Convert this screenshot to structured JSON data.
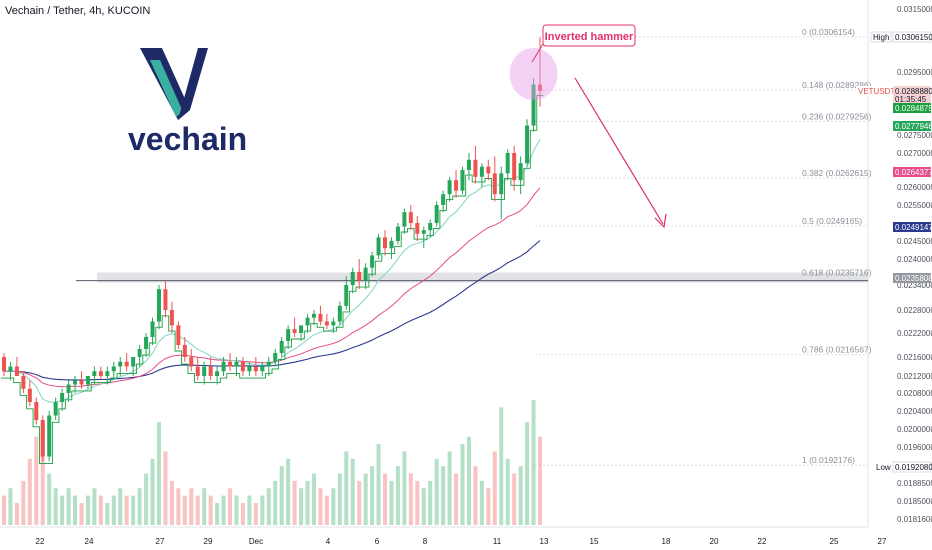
{
  "header": {
    "title": "Vechain / Tether, 4h, KUCOIN"
  },
  "logo": {
    "word": "vechain"
  },
  "annotation": {
    "label": "Inverted hammer"
  },
  "colors": {
    "bull": "#26a65b",
    "bear": "#ef5350",
    "ema_fast": "#7fd6c3",
    "ema_mid": "#e64d8a",
    "ema_slow": "#2b3a8f",
    "step_line": "#1b9e3e",
    "annotation": "#e0306b",
    "highlight_circle": "#e79bea",
    "logo_v_dark": "#1d2a66",
    "logo_v_light": "#3cb0a0"
  },
  "chart_data": {
    "type": "candlestick",
    "symbol": "VETUSDT",
    "exchange": "KUCOIN",
    "timeframe": "4h",
    "y_ticks": [
      "0.0315000",
      "0.0295000",
      "0.0275000",
      "0.0270000",
      "0.0260000",
      "0.0255000",
      "0.0245000",
      "0.0240000",
      "0.0234000",
      "0.0228000",
      "0.0222000",
      "0.0216000",
      "0.0212000",
      "0.0208000",
      "0.0204000",
      "0.0200000",
      "0.0196000",
      "0.0192080",
      "0.0188500",
      "0.0185000",
      "0.0181600"
    ],
    "x_ticks": [
      "22",
      "24",
      "27",
      "29",
      "Dec",
      "4",
      "6",
      "8",
      "11",
      "13",
      "15",
      "18",
      "20",
      "22",
      "25",
      "27"
    ],
    "fib_levels": [
      {
        "label": "0 (0.0306154)"
      },
      {
        "label": "0.148 (0.0289286)"
      },
      {
        "label": "0.236 (0.0279256)"
      },
      {
        "label": "0.382 (0.0262615)"
      },
      {
        "label": "0.5 (0.0249165)"
      },
      {
        "label": "0.618 (0.0235716)"
      },
      {
        "label": "0.786 (0.0216567)"
      },
      {
        "label": "1 (0.0192176)"
      }
    ],
    "price_badges": [
      {
        "text": "High"
      },
      {
        "text": "0.0306150"
      },
      {
        "text": "VETUSDT"
      },
      {
        "text": "0.0288880"
      },
      {
        "text": "01:35:45"
      },
      {
        "text": "0.0284875"
      },
      {
        "text": "0.0277946"
      },
      {
        "text": "0.0264377"
      },
      {
        "text": "0.0249147"
      },
      {
        "text": "0.0235808"
      },
      {
        "text": "Low"
      },
      {
        "text": "0.0192080"
      }
    ],
    "ohlc": [
      [
        0.0216,
        0.0217,
        0.0212,
        0.0213
      ],
      [
        0.0213,
        0.0215,
        0.0211,
        0.0214
      ],
      [
        0.0214,
        0.0216,
        0.0212,
        0.0212
      ],
      [
        0.0212,
        0.0213,
        0.0208,
        0.0209
      ],
      [
        0.0209,
        0.0211,
        0.0205,
        0.0206
      ],
      [
        0.0206,
        0.0207,
        0.0201,
        0.0202
      ],
      [
        0.0202,
        0.0203,
        0.0193,
        0.0194
      ],
      [
        0.0194,
        0.0204,
        0.0193,
        0.0203
      ],
      [
        0.0203,
        0.0207,
        0.0202,
        0.0206
      ],
      [
        0.0206,
        0.0209,
        0.0204,
        0.0208
      ],
      [
        0.0208,
        0.0211,
        0.0206,
        0.021
      ],
      [
        0.021,
        0.0212,
        0.0208,
        0.0211
      ],
      [
        0.0211,
        0.0213,
        0.0209,
        0.021
      ],
      [
        0.021,
        0.0212,
        0.0209,
        0.0212
      ],
      [
        0.0212,
        0.0214,
        0.021,
        0.0213
      ],
      [
        0.0213,
        0.0214,
        0.0211,
        0.0212
      ],
      [
        0.0212,
        0.0214,
        0.021,
        0.0213
      ],
      [
        0.0213,
        0.0215,
        0.0211,
        0.0214
      ],
      [
        0.0214,
        0.0216,
        0.0212,
        0.0215
      ],
      [
        0.0215,
        0.0217,
        0.0213,
        0.0214
      ],
      [
        0.0214,
        0.0216,
        0.0212,
        0.0216
      ],
      [
        0.0216,
        0.0219,
        0.0214,
        0.0218
      ],
      [
        0.0218,
        0.0222,
        0.0216,
        0.0221
      ],
      [
        0.0221,
        0.0226,
        0.0219,
        0.0225
      ],
      [
        0.0225,
        0.0234,
        0.0223,
        0.0233
      ],
      [
        0.0233,
        0.0235,
        0.0226,
        0.0228
      ],
      [
        0.0228,
        0.023,
        0.0222,
        0.0224
      ],
      [
        0.0224,
        0.0225,
        0.0218,
        0.0219
      ],
      [
        0.0219,
        0.0221,
        0.0215,
        0.0216
      ],
      [
        0.0216,
        0.0218,
        0.0213,
        0.0214
      ],
      [
        0.0214,
        0.0216,
        0.0211,
        0.0212
      ],
      [
        0.0212,
        0.0215,
        0.021,
        0.0214
      ],
      [
        0.0214,
        0.0216,
        0.0211,
        0.0212
      ],
      [
        0.0212,
        0.0214,
        0.021,
        0.0213
      ],
      [
        0.0213,
        0.0216,
        0.0212,
        0.0215
      ],
      [
        0.0215,
        0.0217,
        0.0213,
        0.0214
      ],
      [
        0.0214,
        0.0216,
        0.0212,
        0.0215
      ],
      [
        0.0215,
        0.0216,
        0.0212,
        0.0213
      ],
      [
        0.0213,
        0.0215,
        0.0212,
        0.0214
      ],
      [
        0.0214,
        0.0216,
        0.0212,
        0.0213
      ],
      [
        0.0213,
        0.0215,
        0.0212,
        0.0214
      ],
      [
        0.0214,
        0.0216,
        0.0212,
        0.0215
      ],
      [
        0.0215,
        0.0218,
        0.0214,
        0.0217
      ],
      [
        0.0217,
        0.0221,
        0.0216,
        0.022
      ],
      [
        0.022,
        0.0224,
        0.0218,
        0.0223
      ],
      [
        0.0223,
        0.0226,
        0.0221,
        0.0222
      ],
      [
        0.0222,
        0.0224,
        0.022,
        0.0224
      ],
      [
        0.0224,
        0.0227,
        0.0222,
        0.0226
      ],
      [
        0.0226,
        0.0228,
        0.0224,
        0.0227
      ],
      [
        0.0227,
        0.0229,
        0.0224,
        0.0225
      ],
      [
        0.0225,
        0.0227,
        0.0223,
        0.0224
      ],
      [
        0.0224,
        0.0226,
        0.0222,
        0.0225
      ],
      [
        0.0225,
        0.023,
        0.0224,
        0.0229
      ],
      [
        0.0229,
        0.0236,
        0.0228,
        0.0234
      ],
      [
        0.0234,
        0.0238,
        0.0232,
        0.0237
      ],
      [
        0.0237,
        0.024,
        0.0233,
        0.0235
      ],
      [
        0.0235,
        0.0239,
        0.0233,
        0.0238
      ],
      [
        0.0238,
        0.0242,
        0.0236,
        0.0241
      ],
      [
        0.0241,
        0.0247,
        0.024,
        0.0246
      ],
      [
        0.0246,
        0.0248,
        0.0241,
        0.0243
      ],
      [
        0.0243,
        0.0246,
        0.024,
        0.0245
      ],
      [
        0.0245,
        0.025,
        0.0244,
        0.0249
      ],
      [
        0.0249,
        0.0254,
        0.0247,
        0.0253
      ],
      [
        0.0253,
        0.0255,
        0.0248,
        0.025
      ],
      [
        0.025,
        0.0252,
        0.0245,
        0.0247
      ],
      [
        0.0247,
        0.0249,
        0.0243,
        0.0248
      ],
      [
        0.0248,
        0.0251,
        0.0246,
        0.025
      ],
      [
        0.025,
        0.0256,
        0.0249,
        0.0255
      ],
      [
        0.0255,
        0.0259,
        0.0253,
        0.0258
      ],
      [
        0.0258,
        0.0263,
        0.0256,
        0.0262
      ],
      [
        0.0262,
        0.0265,
        0.0257,
        0.0259
      ],
      [
        0.0259,
        0.0266,
        0.0258,
        0.0265
      ],
      [
        0.0265,
        0.027,
        0.0262,
        0.0268
      ],
      [
        0.0268,
        0.0272,
        0.0261,
        0.0263
      ],
      [
        0.0263,
        0.0267,
        0.026,
        0.0266
      ],
      [
        0.0266,
        0.0268,
        0.0262,
        0.0264
      ],
      [
        0.0264,
        0.0269,
        0.0256,
        0.0258
      ],
      [
        0.0258,
        0.0266,
        0.0251,
        0.0264
      ],
      [
        0.0264,
        0.0271,
        0.0262,
        0.027
      ],
      [
        0.027,
        0.0272,
        0.0259,
        0.0262
      ],
      [
        0.0262,
        0.0269,
        0.0258,
        0.0267
      ],
      [
        0.0267,
        0.028,
        0.0266,
        0.0278
      ],
      [
        0.0278,
        0.0293,
        0.0276,
        0.0291
      ],
      [
        0.0291,
        0.0306,
        0.0284,
        0.0289
      ]
    ],
    "volume": [
      4,
      5,
      3,
      6,
      9,
      12,
      14,
      7,
      5,
      4,
      5,
      4,
      3,
      4,
      5,
      4,
      3,
      4,
      5,
      4,
      4,
      5,
      7,
      9,
      14,
      10,
      6,
      5,
      4,
      5,
      4,
      5,
      4,
      3,
      4,
      5,
      4,
      3,
      4,
      3,
      4,
      5,
      6,
      8,
      9,
      6,
      5,
      6,
      7,
      5,
      4,
      5,
      7,
      10,
      9,
      6,
      7,
      8,
      11,
      7,
      6,
      8,
      10,
      7,
      6,
      5,
      6,
      9,
      8,
      10,
      7,
      11,
      12,
      8,
      6,
      5,
      10,
      16,
      9,
      7,
      8,
      14,
      17,
      12
    ]
  }
}
